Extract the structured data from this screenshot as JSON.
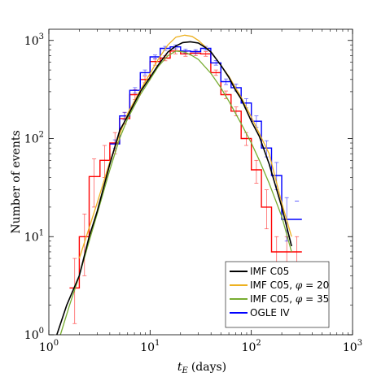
{
  "chart_data": {
    "type": "line",
    "xlabel": {
      "var": "t",
      "sub": "E",
      "unit": "(days)"
    },
    "ylabel": "Number of events",
    "xscale": "log",
    "yscale": "log",
    "xlim": [
      1,
      1000
    ],
    "ylim": [
      1,
      1300
    ],
    "xticks": [
      {
        "value": 1,
        "base": "10",
        "exp": "0"
      },
      {
        "value": 10,
        "base": "10",
        "exp": "1"
      },
      {
        "value": 100,
        "base": "10",
        "exp": "2"
      },
      {
        "value": 1000,
        "base": "10",
        "exp": "3"
      }
    ],
    "yticks": [
      {
        "value": 1,
        "base": "10",
        "exp": "0"
      },
      {
        "value": 10,
        "base": "10",
        "exp": "1"
      },
      {
        "value": 100,
        "base": "10",
        "exp": "2"
      },
      {
        "value": 1000,
        "base": "10",
        "exp": "3"
      }
    ],
    "grid": false,
    "legend_position": "bottom-right",
    "series": [
      {
        "name": "IMF C05",
        "color": "#000000",
        "kind": "curve",
        "x": [
          1.2,
          1.5,
          2,
          2.5,
          3,
          4,
          5,
          6,
          8,
          10,
          12,
          15,
          18,
          21,
          25,
          30,
          35,
          40,
          50,
          60,
          70,
          80,
          100,
          120,
          150,
          200,
          250
        ],
        "y": [
          1,
          2,
          4,
          10,
          18,
          55,
          120,
          170,
          300,
          420,
          560,
          760,
          880,
          950,
          970,
          940,
          850,
          760,
          560,
          420,
          310,
          250,
          150,
          105,
          55,
          20,
          8
        ]
      },
      {
        "name": "IMF C05, φ = 20",
        "legend_parts": [
          "IMF C05, ",
          "φ",
          " = 20"
        ],
        "color": "#edb120",
        "kind": "curve",
        "x": [
          2,
          3,
          4,
          5,
          6,
          8,
          10,
          12,
          15,
          18,
          22,
          26,
          30,
          40,
          50,
          60,
          80,
          100,
          150,
          200,
          250
        ],
        "y": [
          6,
          22,
          58,
          110,
          180,
          310,
          460,
          640,
          900,
          1080,
          1130,
          1100,
          1000,
          760,
          560,
          430,
          260,
          165,
          70,
          22,
          10
        ]
      },
      {
        "name": "IMF C05, φ = 35",
        "legend_parts": [
          "IMF C05, ",
          "φ",
          " = 35"
        ],
        "color": "#77ac30",
        "kind": "curve",
        "x": [
          1.3,
          1.6,
          2,
          2.5,
          3,
          4,
          5,
          6,
          8,
          10,
          12,
          15,
          18,
          22,
          26,
          30,
          40,
          50,
          60,
          80,
          100,
          120,
          150,
          200,
          250
        ],
        "y": [
          1,
          2,
          4,
          9,
          17,
          48,
          100,
          160,
          280,
          400,
          540,
          700,
          780,
          760,
          700,
          640,
          460,
          330,
          240,
          140,
          90,
          60,
          35,
          16,
          7
        ]
      },
      {
        "name": "OGLE IV",
        "color": "#0000ff",
        "kind": "step",
        "edges": [
          4.0,
          5.0,
          6.3,
          8.0,
          10.0,
          12.6,
          15.8,
          20.0,
          25.1,
          31.6,
          39.8,
          50.1,
          63.1,
          79.4,
          100.0,
          125.9,
          158.5,
          199.5,
          251.2,
          316.2
        ],
        "values": [
          88,
          170,
          310,
          470,
          680,
          830,
          860,
          780,
          770,
          830,
          590,
          380,
          330,
          230,
          150,
          80,
          42,
          15,
          15
        ],
        "err_x": [
          4.5,
          5.6,
          7.1,
          8.9,
          11.2,
          14.1,
          17.8,
          22.4,
          28.2,
          35.5,
          44.7,
          56.2,
          70.8,
          89.1,
          112.2,
          141.3,
          177.8,
          223.9,
          281.8
        ],
        "err_lo": [
          80,
          155,
          290,
          445,
          650,
          790,
          820,
          745,
          735,
          795,
          560,
          355,
          305,
          205,
          130,
          65,
          30,
          9,
          23
        ],
        "err_hi": [
          97,
          185,
          330,
          500,
          710,
          870,
          900,
          815,
          805,
          870,
          625,
          405,
          360,
          255,
          170,
          95,
          57,
          25,
          23
        ]
      },
      {
        "name": "",
        "color": "#ff0000",
        "kind": "step",
        "edges": [
          1.6,
          2.0,
          2.5,
          3.2,
          4.0,
          5.0,
          6.3,
          8.0,
          10.0,
          12.6,
          15.8,
          20.0,
          25.1,
          31.6,
          39.8,
          50.1,
          63.1,
          79.4,
          100.0,
          125.9,
          158.5,
          199.5,
          251.2,
          316.2
        ],
        "values": [
          3,
          10,
          41,
          60,
          90,
          160,
          280,
          400,
          610,
          660,
          780,
          730,
          740,
          730,
          470,
          280,
          190,
          100,
          48,
          20,
          7,
          7,
          7
        ],
        "err_x": [
          1.8,
          2.25,
          2.8,
          3.55,
          4.5,
          5.6,
          7.1,
          8.9,
          11.2,
          14.1,
          17.8,
          22.4,
          28.2,
          35.5,
          44.7,
          56.2,
          70.8,
          89.1,
          112.2,
          141.3,
          177.8,
          223.9,
          281.8
        ],
        "err_lo": [
          1.3,
          4,
          20,
          40,
          70,
          140,
          250,
          370,
          560,
          620,
          730,
          690,
          700,
          690,
          440,
          255,
          170,
          85,
          35,
          12,
          4,
          4,
          4
        ],
        "err_hi": [
          6,
          17,
          62,
          85,
          115,
          185,
          315,
          430,
          650,
          700,
          820,
          770,
          780,
          770,
          500,
          305,
          210,
          115,
          60,
          30,
          10,
          10,
          10
        ]
      }
    ]
  }
}
